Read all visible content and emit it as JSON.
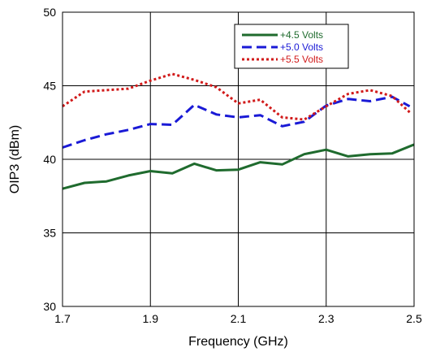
{
  "chart_data": {
    "type": "line",
    "xlabel": "Frequency (GHz)",
    "ylabel": "OIP3 (dBm)",
    "xlim": [
      1.7,
      2.5
    ],
    "ylim": [
      30,
      50
    ],
    "x_ticks": [
      1.7,
      1.9,
      2.1,
      2.3,
      2.5
    ],
    "x_tick_labels": [
      "1.7",
      "1.9",
      "2.1",
      "2.3",
      "2.5"
    ],
    "y_ticks": [
      30,
      35,
      40,
      45,
      50
    ],
    "y_tick_labels": [
      "30",
      "35",
      "40",
      "45",
      "50"
    ],
    "grid": true,
    "legend_placement": "top-right",
    "series": [
      {
        "name": "+4.5 Volts",
        "color": "#1f6b2e",
        "style": "solid",
        "x": [
          1.7,
          1.75,
          1.8,
          1.85,
          1.9,
          1.95,
          2.0,
          2.05,
          2.1,
          2.15,
          2.2,
          2.25,
          2.3,
          2.35,
          2.4,
          2.45,
          2.5
        ],
        "y": [
          38.0,
          38.4,
          38.5,
          38.9,
          39.2,
          39.05,
          39.7,
          39.25,
          39.3,
          39.8,
          39.65,
          40.35,
          40.65,
          40.2,
          40.35,
          40.4,
          41.0
        ]
      },
      {
        "name": "+5.0 Volts",
        "color": "#1a1ad6",
        "style": "dashed",
        "x": [
          1.7,
          1.75,
          1.8,
          1.85,
          1.9,
          1.95,
          2.0,
          2.05,
          2.1,
          2.15,
          2.2,
          2.25,
          2.3,
          2.35,
          2.4,
          2.45,
          2.49
        ],
        "y": [
          40.8,
          41.3,
          41.7,
          42.0,
          42.4,
          42.35,
          43.7,
          43.05,
          42.85,
          43.0,
          42.25,
          42.55,
          43.65,
          44.1,
          43.95,
          44.25,
          43.6
        ]
      },
      {
        "name": "+5.5 Volts",
        "color": "#d11a1a",
        "style": "dotted",
        "x": [
          1.7,
          1.75,
          1.8,
          1.85,
          1.9,
          1.95,
          2.0,
          2.05,
          2.1,
          2.15,
          2.2,
          2.25,
          2.3,
          2.35,
          2.4,
          2.45,
          2.49
        ],
        "y": [
          43.6,
          44.6,
          44.7,
          44.8,
          45.35,
          45.8,
          45.4,
          44.9,
          43.8,
          44.05,
          42.85,
          42.7,
          43.6,
          44.45,
          44.7,
          44.3,
          43.2
        ]
      }
    ]
  }
}
